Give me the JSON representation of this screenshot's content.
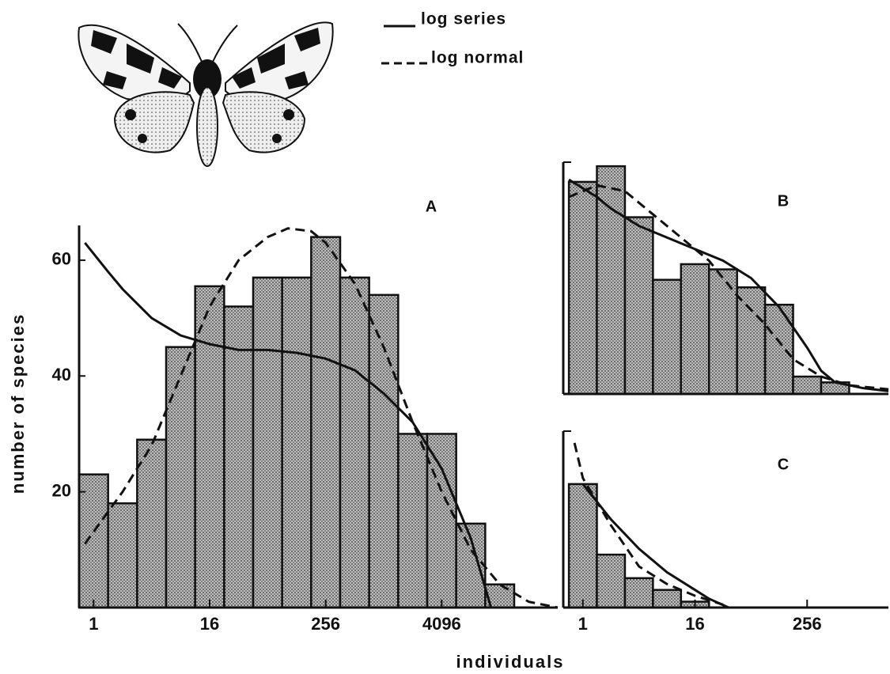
{
  "x_label": "individuals",
  "chart_data": [
    {
      "type": "histogram",
      "panel_label": "A",
      "y_label": "number of species",
      "bins": [
        -0.5,
        0.5,
        1.5,
        2.5,
        3.5,
        4.5,
        5.5,
        6.5,
        7.5,
        8.5,
        9.5,
        10.5,
        11.5,
        12.5,
        13.5,
        14.5
      ],
      "counts": [
        23,
        18,
        29,
        45,
        55.5,
        52,
        57,
        57,
        64,
        57,
        54,
        30,
        30,
        14.5,
        4
      ],
      "xlim": [
        -0.5,
        16
      ],
      "ylim": [
        0,
        66
      ],
      "xticks": [
        {
          "value": 0,
          "label": "1"
        },
        {
          "value": 4,
          "label": "16"
        },
        {
          "value": 8,
          "label": "256"
        },
        {
          "value": 12,
          "label": "4096"
        }
      ],
      "yticks": [
        20,
        40,
        60
      ],
      "series": [
        {
          "name": "log series",
          "line_style": "solid",
          "color": "#111111",
          "x": [
            -0.3,
            0.5,
            1,
            2,
            3,
            4,
            5,
            6,
            7,
            8,
            9,
            10,
            11,
            12,
            13,
            13.7
          ],
          "values": [
            63,
            58,
            55,
            50,
            47,
            45.5,
            44.5,
            44.5,
            44,
            43,
            41,
            37,
            32,
            24,
            12,
            0
          ]
        },
        {
          "name": "log normal",
          "line_style": "dashed",
          "color": "#111111",
          "x": [
            -0.3,
            1,
            2,
            3,
            4,
            5,
            6,
            6.7,
            7.5,
            8,
            9,
            10,
            11,
            12,
            13,
            14,
            15,
            16
          ],
          "values": [
            11,
            20,
            28,
            40,
            52,
            60,
            64,
            65.5,
            65,
            63,
            56,
            45,
            32,
            20,
            10,
            4,
            1,
            0
          ]
        }
      ]
    },
    {
      "type": "histogram",
      "panel_label": "B",
      "bins": [
        -0.5,
        0.5,
        1.5,
        2.5,
        3.5,
        4.5,
        5.5,
        6.5,
        7.5,
        8.5,
        9.5
      ],
      "counts": [
        36.6,
        39.3,
        30.5,
        19.7,
        22.4,
        21.5,
        18.4,
        15.4,
        3,
        2
      ],
      "xlim": [
        -0.7,
        10.9
      ],
      "ylim": [
        0,
        40
      ],
      "series": [
        {
          "line_style": "solid",
          "color": "#111111",
          "x": [
            -0.5,
            0.5,
            1,
            2,
            3,
            4,
            5,
            6,
            7,
            8,
            8.5,
            9,
            10,
            10.9
          ],
          "values": [
            37,
            34,
            32,
            29,
            27,
            25,
            23,
            20,
            15,
            8,
            4,
            2,
            1,
            0.5
          ]
        },
        {
          "line_style": "dashed",
          "color": "#111111",
          "x": [
            -0.5,
            0.5,
            1.5,
            2.5,
            3.5,
            4.5,
            5.5,
            6.5,
            7.5,
            8.5,
            9.5,
            10.9
          ],
          "values": [
            34,
            36,
            35,
            31,
            27,
            23,
            17,
            12,
            6,
            3,
            1.5,
            0.8
          ]
        }
      ]
    },
    {
      "type": "histogram",
      "panel_label": "C",
      "bins": [
        -0.5,
        0.5,
        1.5,
        2.5,
        3.5,
        4.5
      ],
      "counts": [
        21,
        9,
        5,
        3,
        1
      ],
      "xlim": [
        -0.7,
        10.9
      ],
      "ylim": [
        0,
        30
      ],
      "xticks": [
        {
          "value": 0,
          "label": "1"
        },
        {
          "value": 4,
          "label": "16"
        },
        {
          "value": 8,
          "label": "256"
        }
      ],
      "series": [
        {
          "line_style": "solid",
          "color": "#111111",
          "x": [
            0,
            1,
            2,
            3,
            4,
            4.5,
            5.2
          ],
          "values": [
            21,
            15,
            10,
            6,
            3,
            1.5,
            0
          ]
        },
        {
          "line_style": "dashed",
          "color": "#111111",
          "x": [
            -0.3,
            0,
            1,
            2,
            3,
            4,
            5
          ],
          "values": [
            28,
            22,
            14,
            7,
            4,
            2,
            0.5
          ]
        }
      ]
    }
  ]
}
